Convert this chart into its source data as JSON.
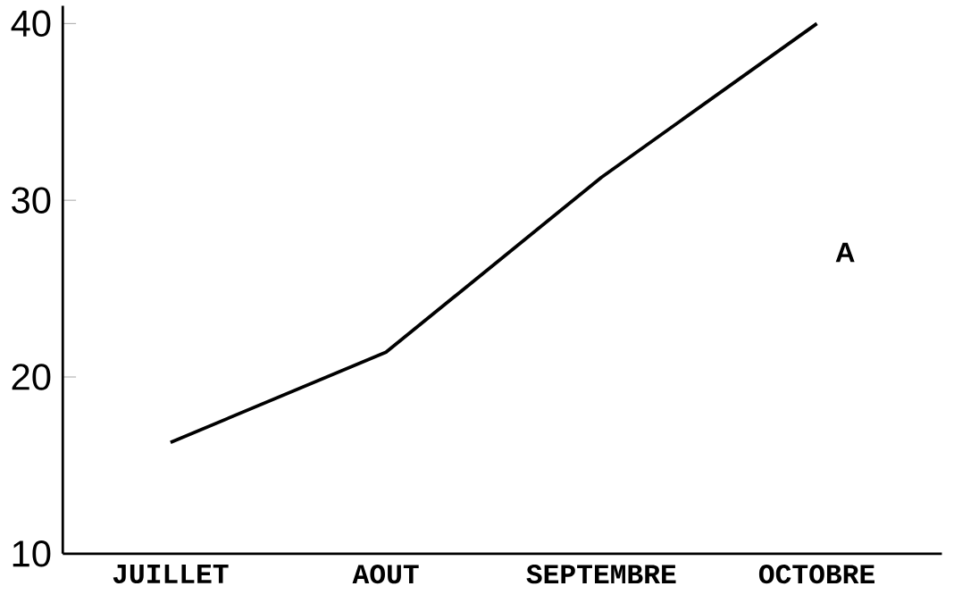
{
  "chart_data": {
    "type": "line",
    "categories": [
      "JUILLET",
      "AOUT",
      "SEPTEMBRE",
      "OCTOBRE"
    ],
    "values": [
      16.3,
      21.4,
      31.3,
      40
    ],
    "color": "#000000",
    "ylim": [
      10,
      41
    ],
    "yticks": [
      10,
      20,
      30,
      40
    ],
    "grid": false,
    "marker": "none",
    "line_style": "solid",
    "annotations": [
      "A"
    ]
  }
}
